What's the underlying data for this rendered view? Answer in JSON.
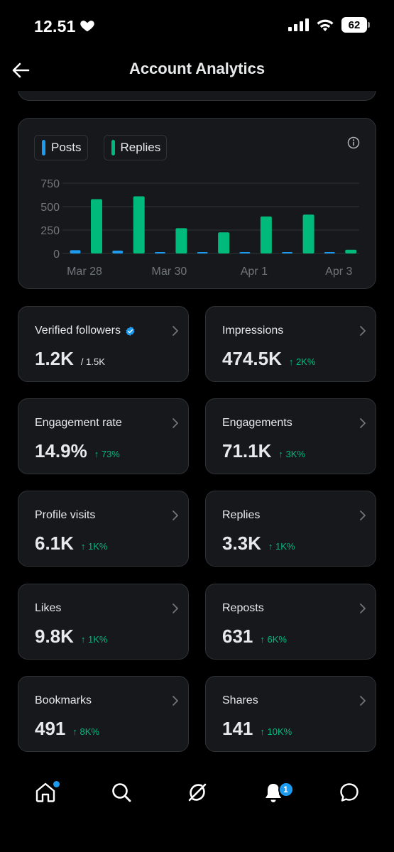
{
  "status_bar": {
    "time": "12.51",
    "battery": "62"
  },
  "header": {
    "title": "Account Analytics"
  },
  "chart_data": {
    "type": "bar",
    "categories": [
      "Mar 28",
      "Mar 29",
      "Mar 30",
      "Mar 31",
      "Apr 1",
      "Apr 2",
      "Apr 3"
    ],
    "x_tick_labels": [
      "Mar 28",
      "Mar 30",
      "Apr 1",
      "Apr 3"
    ],
    "series": [
      {
        "name": "Posts",
        "color": "#1d9bf0",
        "values": [
          35,
          30,
          5,
          5,
          15,
          10,
          2
        ]
      },
      {
        "name": "Replies",
        "color": "#00ba7c",
        "values": [
          580,
          610,
          270,
          225,
          395,
          415,
          40
        ]
      }
    ],
    "y_ticks": [
      "750",
      "500",
      "250",
      "0"
    ],
    "ylim": [
      0,
      750
    ],
    "grid": true
  },
  "metrics": [
    {
      "label": "Verified followers",
      "value": "1.2K",
      "sub": "/ 1.5K"
    },
    {
      "label": "Impressions",
      "value": "474.5K",
      "delta": "↑ 2K%"
    },
    {
      "label": "Engagement rate",
      "value": "14.9%",
      "delta": "↑ 73%"
    },
    {
      "label": "Engagements",
      "value": "71.1K",
      "delta": "↑ 3K%"
    },
    {
      "label": "Profile visits",
      "value": "6.1K",
      "delta": "↑ 1K%"
    },
    {
      "label": "Replies",
      "value": "3.3K",
      "delta": "↑ 1K%"
    },
    {
      "label": "Likes",
      "value": "9.8K",
      "delta": "↑ 1K%"
    },
    {
      "label": "Reposts",
      "value": "631",
      "delta": "↑ 6K%"
    },
    {
      "label": "Bookmarks",
      "value": "491",
      "delta": "↑ 8K%"
    },
    {
      "label": "Shares",
      "value": "141",
      "delta": "↑ 10K%"
    }
  ],
  "bottom_nav": {
    "notifications_count": "1"
  },
  "colors": {
    "posts": "#1d9bf0",
    "replies": "#00ba7c",
    "delta_up": "#00ba7c",
    "accent": "#1d9bf0"
  }
}
